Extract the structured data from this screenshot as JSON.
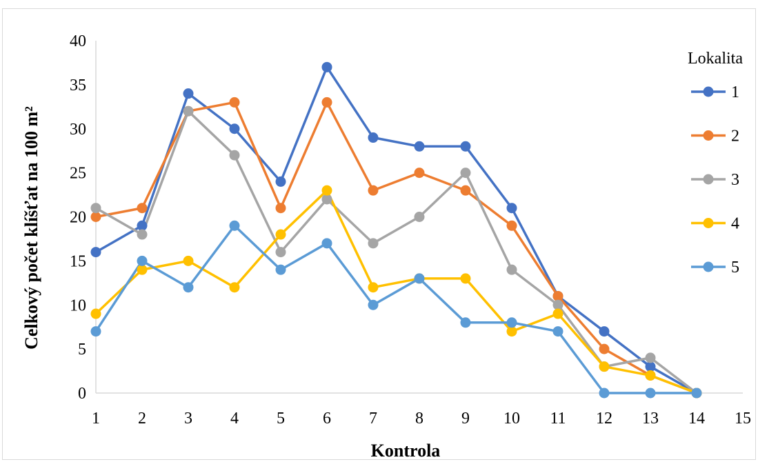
{
  "chart_data": {
    "type": "line",
    "title": "",
    "xlabel": "Kontrola",
    "ylabel": "Celkový počet klíšťat na 100 m²",
    "x": [
      1,
      2,
      3,
      4,
      5,
      6,
      7,
      8,
      9,
      10,
      11,
      12,
      13,
      14
    ],
    "xlim": [
      1,
      15
    ],
    "ylim": [
      0,
      40
    ],
    "x_ticks": [
      1,
      2,
      3,
      4,
      5,
      6,
      7,
      8,
      9,
      10,
      11,
      12,
      13,
      14,
      15
    ],
    "y_ticks": [
      0,
      5,
      10,
      15,
      20,
      25,
      30,
      35,
      40
    ],
    "grid": false,
    "legend_title": "Lokalita",
    "legend_position": "right",
    "series": [
      {
        "name": "1",
        "color": "#4472C4",
        "values": [
          16,
          19,
          34,
          30,
          24,
          37,
          29,
          28,
          28,
          21,
          11,
          7,
          3,
          0
        ]
      },
      {
        "name": "2",
        "color": "#ED7D31",
        "values": [
          20,
          21,
          32,
          33,
          21,
          33,
          23,
          25,
          23,
          19,
          11,
          5,
          2,
          0
        ]
      },
      {
        "name": "3",
        "color": "#A5A5A5",
        "values": [
          21,
          18,
          32,
          27,
          16,
          22,
          17,
          20,
          25,
          14,
          10,
          3,
          4,
          0
        ]
      },
      {
        "name": "4",
        "color": "#FFC000",
        "values": [
          9,
          14,
          15,
          12,
          18,
          23,
          12,
          13,
          13,
          7,
          9,
          3,
          2,
          0
        ]
      },
      {
        "name": "5",
        "color": "#5B9BD5",
        "values": [
          7,
          15,
          12,
          19,
          14,
          17,
          10,
          13,
          8,
          8,
          7,
          0,
          0,
          0
        ]
      }
    ]
  }
}
